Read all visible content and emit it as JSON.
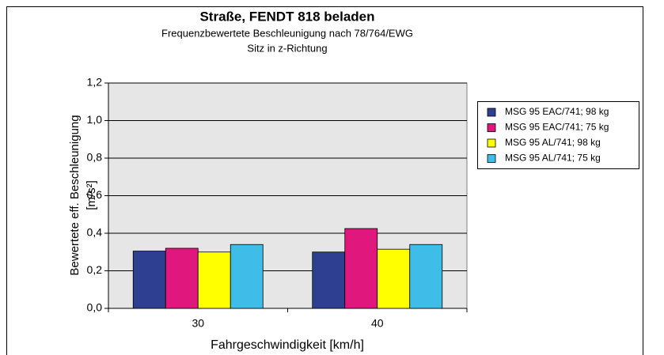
{
  "chart_data": {
    "type": "bar",
    "title": "Straße, FENDT 818 beladen",
    "subtitle": [
      "Frequenzbewertete Beschleunigung nach 78/764/EWG",
      "Sitz in z-Richtung"
    ],
    "y_label": [
      "Bewertete eff. Beschleunigung",
      "[m/s²]"
    ],
    "x_label": "Fahrgeschwindigkeit [km/h]",
    "categories": [
      "30",
      "40"
    ],
    "series": [
      {
        "name": "MSG 95 EAC/741; 98 kg",
        "color": "#2e3f91",
        "values": [
          0.305,
          0.3
        ]
      },
      {
        "name": "MSG 95 EAC/741; 75 kg",
        "color": "#e0177c",
        "values": [
          0.32,
          0.425
        ]
      },
      {
        "name": "MSG 95 AL/741; 98 kg",
        "color": "#ffff00",
        "values": [
          0.3,
          0.315
        ]
      },
      {
        "name": "MSG 95 AL/741; 75 kg",
        "color": "#3dbde8",
        "values": [
          0.34,
          0.34
        ]
      }
    ],
    "ylim": [
      0,
      1.2
    ],
    "yticks": [
      {
        "value": 0,
        "label": "0,0"
      },
      {
        "value": 0.2,
        "label": "0,2"
      },
      {
        "value": 0.4,
        "label": "0,4"
      },
      {
        "value": 0.6,
        "label": "0,6"
      },
      {
        "value": 0.8,
        "label": "0,8"
      },
      {
        "value": 1.0,
        "label": "1,0"
      },
      {
        "value": 1.2,
        "label": "1,2"
      }
    ],
    "grid": true,
    "legend": "right"
  }
}
